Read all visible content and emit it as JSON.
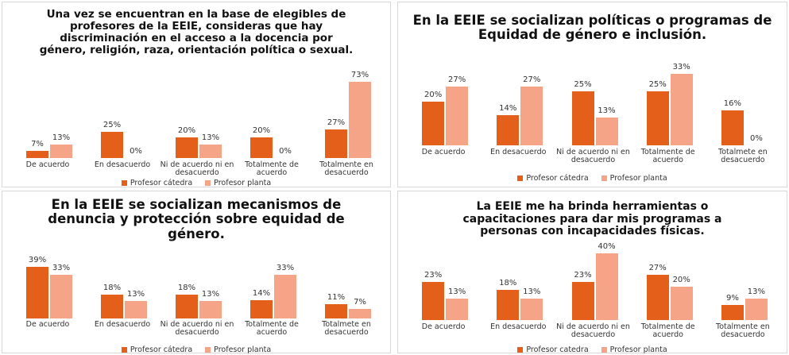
{
  "chart_data": [
    {
      "type": "bar",
      "title": "Una vez se encuentran en la base de elegibles de profesores de la EEIE, consideras que hay discriminación en el acceso a la docencia por género, religión, raza, orientación política o sexual.",
      "categories": [
        "De acuerdo",
        "En desacuerdo",
        "Ni de acuerdo ni en desacuerdo",
        "Totalmente de acuerdo",
        "Totalmente en desacuerdo"
      ],
      "series": [
        {
          "name": "Profesor cátedra",
          "color": "#e4601a",
          "values": [
            7,
            25,
            20,
            20,
            27
          ],
          "value_labels": [
            "7%",
            "25%",
            "20%",
            "20%",
            "27%"
          ]
        },
        {
          "name": "Profesor planta",
          "color": "#f6a488",
          "values": [
            13,
            0,
            13,
            0,
            73
          ],
          "value_labels": [
            "13%",
            "0%",
            "13%",
            "0%",
            "73%"
          ]
        }
      ]
    },
    {
      "type": "bar",
      "title": "En la EEIE se socializan políticas o programas de Equidad de género e inclusión.",
      "categories": [
        "De acuerdo",
        "En desacuerdo",
        "Ni de acuerdo ni en desacuerdo",
        "Totalmente de acuerdo",
        "Totalmete en desacuerdo"
      ],
      "series": [
        {
          "name": "Profesor cátedra",
          "color": "#e4601a",
          "values": [
            20,
            14,
            25,
            25,
            16
          ],
          "value_labels": [
            "20%",
            "14%",
            "25%",
            "25%",
            "16%"
          ]
        },
        {
          "name": "Profesor planta",
          "color": "#f6a488",
          "values": [
            27,
            27,
            13,
            33,
            0
          ],
          "value_labels": [
            "27%",
            "27%",
            "13%",
            "33%",
            "0%"
          ]
        }
      ]
    },
    {
      "type": "bar",
      "title": "En la EEIE se socializan mecanismos de denuncia y protección sobre equidad de género.",
      "categories": [
        "De acuerdo",
        "En desacuerdo",
        "Ni de acuerdo ni en desacuerdo",
        "Totalmente de acuerdo",
        "Totalmete en desacuerdo"
      ],
      "series": [
        {
          "name": "Profesor cátedra",
          "color": "#e4601a",
          "values": [
            39,
            18,
            18,
            14,
            11
          ],
          "value_labels": [
            "39%",
            "18%",
            "18%",
            "14%",
            "11%"
          ]
        },
        {
          "name": "Profesor planta",
          "color": "#f6a488",
          "values": [
            33,
            13,
            13,
            33,
            7
          ],
          "value_labels": [
            "33%",
            "13%",
            "13%",
            "33%",
            "7%"
          ]
        }
      ]
    },
    {
      "type": "bar",
      "title": "La EEIE me ha brinda herramientas o capacitaciones para dar mis programas a personas con incapacidades físicas.",
      "categories": [
        "De acuerdo",
        "En desacuerdo",
        "Ni de acuerdo ni en desacuerdo",
        "Totalmente de acuerdo",
        "Totalmente en desacuerdo"
      ],
      "series": [
        {
          "name": "Profesor catedra",
          "color": "#e4601a",
          "values": [
            23,
            18,
            23,
            27,
            9
          ],
          "value_labels": [
            "23%",
            "18%",
            "23%",
            "27%",
            "9%"
          ]
        },
        {
          "name": "Profesor planta",
          "color": "#f6a488",
          "values": [
            13,
            13,
            40,
            20,
            13
          ],
          "value_labels": [
            "13%",
            "13%",
            "40%",
            "20%",
            "13%"
          ]
        }
      ]
    }
  ]
}
